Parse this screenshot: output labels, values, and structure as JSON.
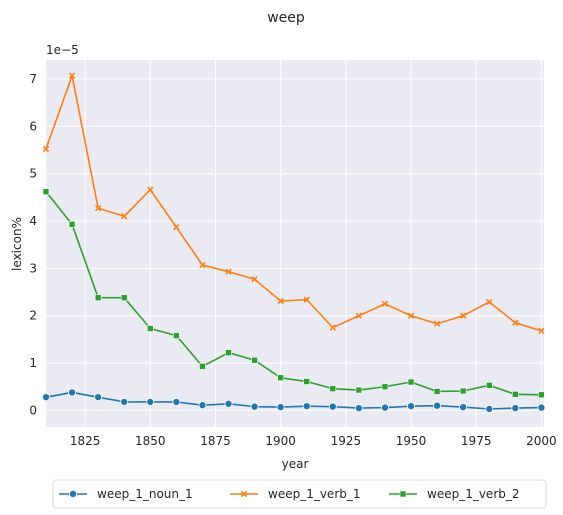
{
  "chart_data": {
    "type": "line",
    "title": "weep",
    "xlabel": "year",
    "ylabel": "lexicon%",
    "scale_note": "1e−5",
    "xlim": [
      1810,
      2001
    ],
    "ylim": [
      -0.35,
      7.4
    ],
    "x_ticks": [
      1825,
      1850,
      1875,
      1900,
      1925,
      1950,
      1975,
      2000
    ],
    "y_ticks": [
      0,
      1,
      2,
      3,
      4,
      5,
      6,
      7
    ],
    "grid": true,
    "legend_position": "bottom-center",
    "x": [
      1810,
      1820,
      1830,
      1840,
      1850,
      1860,
      1870,
      1880,
      1890,
      1900,
      1910,
      1920,
      1930,
      1940,
      1950,
      1960,
      1970,
      1980,
      1990,
      2000
    ],
    "series": [
      {
        "name": "weep_1_noun_1",
        "color": "#1f77b4",
        "marker": "circle",
        "values": [
          0.28,
          0.38,
          0.28,
          0.18,
          0.18,
          0.18,
          0.11,
          0.14,
          0.08,
          0.07,
          0.09,
          0.08,
          0.05,
          0.06,
          0.09,
          0.1,
          0.07,
          0.03,
          0.05,
          0.06
        ]
      },
      {
        "name": "weep_1_verb_1",
        "color": "#ff7f0e",
        "marker": "x",
        "values": [
          5.52,
          7.07,
          4.27,
          4.1,
          4.66,
          3.87,
          3.07,
          2.93,
          2.77,
          2.31,
          2.34,
          1.75,
          2.0,
          2.25,
          2.0,
          1.83,
          2.0,
          2.29,
          1.85,
          1.68
        ]
      },
      {
        "name": "weep_1_verb_2",
        "color": "#2ca02c",
        "marker": "square",
        "values": [
          4.62,
          3.93,
          2.38,
          2.38,
          1.73,
          1.58,
          0.93,
          1.22,
          1.06,
          0.69,
          0.61,
          0.46,
          0.43,
          0.5,
          0.6,
          0.4,
          0.41,
          0.53,
          0.34,
          0.33
        ]
      }
    ]
  }
}
